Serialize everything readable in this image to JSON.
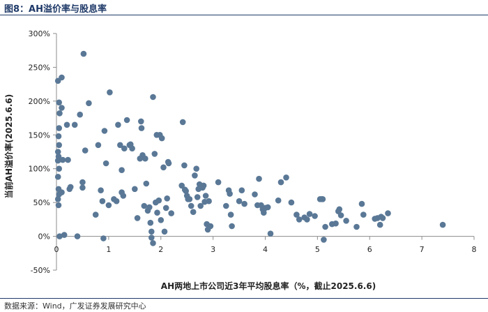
{
  "figure_title": "图8：AH溢价率与股息率",
  "source": "数据来源：Wind，广发证券发展研究中心",
  "colors": {
    "point": "#5a7896",
    "axis": "#8c8c8c",
    "title": "#1f3a68"
  },
  "chart_data": {
    "type": "scatter",
    "xlabel": "AH两地上市公司近3年平均股息率（%，截止2025.6.6)",
    "ylabel": "当前AH溢价率(2025.6.6)",
    "xlim": [
      0,
      8
    ],
    "ylim": [
      -50,
      300
    ],
    "x_ticks": [
      "0",
      "1",
      "2",
      "3",
      "4",
      "5",
      "6",
      "7",
      "8"
    ],
    "y_ticks": [
      "300%",
      "250%",
      "200%",
      "150%",
      "100%",
      "50%",
      "0%",
      "-50%"
    ],
    "grid": false,
    "points": [
      [
        0.03,
        230
      ],
      [
        0.05,
        198
      ],
      [
        0.06,
        182
      ],
      [
        0.05,
        160
      ],
      [
        0.04,
        148
      ],
      [
        0.05,
        135
      ],
      [
        0.03,
        125
      ],
      [
        0.04,
        118
      ],
      [
        0.03,
        112
      ],
      [
        0.05,
        100
      ],
      [
        0.03,
        88
      ],
      [
        0.04,
        70
      ],
      [
        0.05,
        62
      ],
      [
        0.03,
        55
      ],
      [
        0.04,
        46
      ],
      [
        0.06,
        0
      ],
      [
        0.1,
        235
      ],
      [
        0.1,
        190
      ],
      [
        0.1,
        65
      ],
      [
        0.12,
        113
      ],
      [
        0.15,
        2
      ],
      [
        0.2,
        165
      ],
      [
        0.22,
        113
      ],
      [
        0.25,
        70
      ],
      [
        0.27,
        73
      ],
      [
        0.35,
        165
      ],
      [
        0.4,
        0
      ],
      [
        0.45,
        180
      ],
      [
        0.5,
        80
      ],
      [
        0.5,
        72
      ],
      [
        0.52,
        270
      ],
      [
        0.55,
        127
      ],
      [
        0.62,
        197
      ],
      [
        0.75,
        32
      ],
      [
        0.8,
        135
      ],
      [
        0.85,
        68
      ],
      [
        0.88,
        52
      ],
      [
        0.9,
        -3
      ],
      [
        0.92,
        156
      ],
      [
        0.95,
        108
      ],
      [
        1.0,
        46
      ],
      [
        1.02,
        213
      ],
      [
        1.1,
        55
      ],
      [
        1.15,
        52
      ],
      [
        1.18,
        165
      ],
      [
        1.22,
        135
      ],
      [
        1.25,
        98
      ],
      [
        1.25,
        65
      ],
      [
        1.28,
        60
      ],
      [
        1.3,
        130
      ],
      [
        1.35,
        172
      ],
      [
        1.4,
        135
      ],
      [
        1.42,
        136
      ],
      [
        1.45,
        130
      ],
      [
        1.5,
        70
      ],
      [
        1.55,
        27
      ],
      [
        1.6,
        115
      ],
      [
        1.62,
        170
      ],
      [
        1.63,
        160
      ],
      [
        1.65,
        120
      ],
      [
        1.68,
        45
      ],
      [
        1.7,
        115
      ],
      [
        1.72,
        78
      ],
      [
        1.75,
        38
      ],
      [
        1.78,
        43
      ],
      [
        1.8,
        20
      ],
      [
        1.82,
        -2
      ],
      [
        1.82,
        7
      ],
      [
        1.85,
        206
      ],
      [
        1.85,
        -10
      ],
      [
        1.88,
        122
      ],
      [
        1.9,
        50
      ],
      [
        1.92,
        150
      ],
      [
        1.93,
        35
      ],
      [
        1.96,
        53
      ],
      [
        1.98,
        150
      ],
      [
        2.0,
        24
      ],
      [
        2.02,
        145
      ],
      [
        2.05,
        102
      ],
      [
        2.07,
        7
      ],
      [
        2.1,
        42
      ],
      [
        2.12,
        56
      ],
      [
        2.14,
        110
      ],
      [
        2.15,
        108
      ],
      [
        2.2,
        34
      ],
      [
        2.4,
        75
      ],
      [
        2.42,
        169
      ],
      [
        2.45,
        105
      ],
      [
        2.46,
        69
      ],
      [
        2.48,
        67
      ],
      [
        2.5,
        60
      ],
      [
        2.52,
        55
      ],
      [
        2.55,
        55
      ],
      [
        2.58,
        45
      ],
      [
        2.62,
        36
      ],
      [
        2.65,
        90
      ],
      [
        2.68,
        100
      ],
      [
        2.7,
        58
      ],
      [
        2.72,
        70
      ],
      [
        2.74,
        77
      ],
      [
        2.76,
        45
      ],
      [
        2.8,
        72
      ],
      [
        2.82,
        75
      ],
      [
        2.84,
        51
      ],
      [
        2.86,
        60
      ],
      [
        2.88,
        18
      ],
      [
        2.9,
        10
      ],
      [
        2.92,
        52
      ],
      [
        2.95,
        15
      ],
      [
        3.1,
        80
      ],
      [
        3.25,
        45
      ],
      [
        3.3,
        68
      ],
      [
        3.32,
        63
      ],
      [
        3.34,
        32
      ],
      [
        3.36,
        15
      ],
      [
        3.5,
        52
      ],
      [
        3.55,
        68
      ],
      [
        3.6,
        48
      ],
      [
        3.8,
        62
      ],
      [
        3.85,
        46
      ],
      [
        3.88,
        85
      ],
      [
        3.92,
        46
      ],
      [
        3.95,
        40
      ],
      [
        3.97,
        35
      ],
      [
        4.0,
        42
      ],
      [
        4.05,
        43
      ],
      [
        4.1,
        4
      ],
      [
        4.25,
        53
      ],
      [
        4.3,
        80
      ],
      [
        4.4,
        87
      ],
      [
        4.5,
        50
      ],
      [
        4.6,
        32
      ],
      [
        4.65,
        25
      ],
      [
        4.75,
        28
      ],
      [
        4.8,
        25
      ],
      [
        4.85,
        33
      ],
      [
        4.95,
        30
      ],
      [
        5.05,
        55
      ],
      [
        5.08,
        55
      ],
      [
        5.1,
        55
      ],
      [
        5.12,
        -5
      ],
      [
        5.15,
        14
      ],
      [
        5.28,
        18
      ],
      [
        5.35,
        19
      ],
      [
        5.4,
        37
      ],
      [
        5.42,
        40
      ],
      [
        5.45,
        31
      ],
      [
        5.55,
        23
      ],
      [
        5.75,
        14
      ],
      [
        5.85,
        48
      ],
      [
        5.88,
        32
      ],
      [
        6.1,
        26
      ],
      [
        6.15,
        27
      ],
      [
        6.2,
        17
      ],
      [
        6.22,
        29
      ],
      [
        6.25,
        27
      ],
      [
        6.35,
        34
      ],
      [
        7.4,
        17
      ]
    ]
  }
}
